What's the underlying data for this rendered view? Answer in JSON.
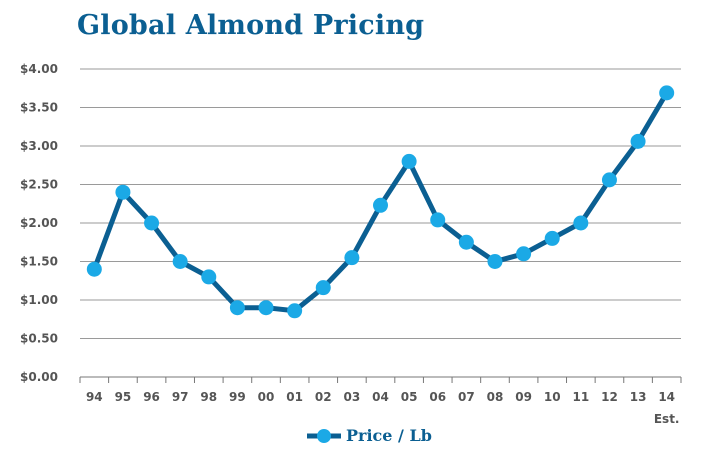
{
  "chart_data": {
    "type": "line",
    "title": "Global Almond Pricing",
    "xlabel": "",
    "ylabel": "",
    "categories": [
      "94",
      "95",
      "96",
      "97",
      "98",
      "99",
      "00",
      "01",
      "02",
      "03",
      "04",
      "05",
      "06",
      "07",
      "08",
      "09",
      "10",
      "11",
      "12",
      "13",
      "14"
    ],
    "extra_tick_text": "Est.",
    "series": [
      {
        "name": "Price / Lb",
        "values": [
          1.4,
          2.4,
          2.0,
          1.5,
          1.3,
          0.9,
          0.9,
          0.86,
          1.16,
          1.55,
          2.23,
          2.8,
          2.04,
          1.75,
          1.5,
          1.6,
          1.8,
          2.0,
          2.56,
          3.06,
          3.69
        ]
      }
    ],
    "y_ticks": [
      "$0.00",
      "$0.50",
      "$1.00",
      "$1.50",
      "$2.00",
      "$2.50",
      "$3.00",
      "$3.50",
      "$4.00"
    ],
    "ylim": [
      0,
      4
    ],
    "grid": true,
    "legend_position": "bottom-center",
    "colors": {
      "line": "#0b5f92",
      "marker": "#1ba9e6",
      "grid": "#9a9a9a",
      "axis": "#777777",
      "title": "#0b5f92"
    }
  }
}
